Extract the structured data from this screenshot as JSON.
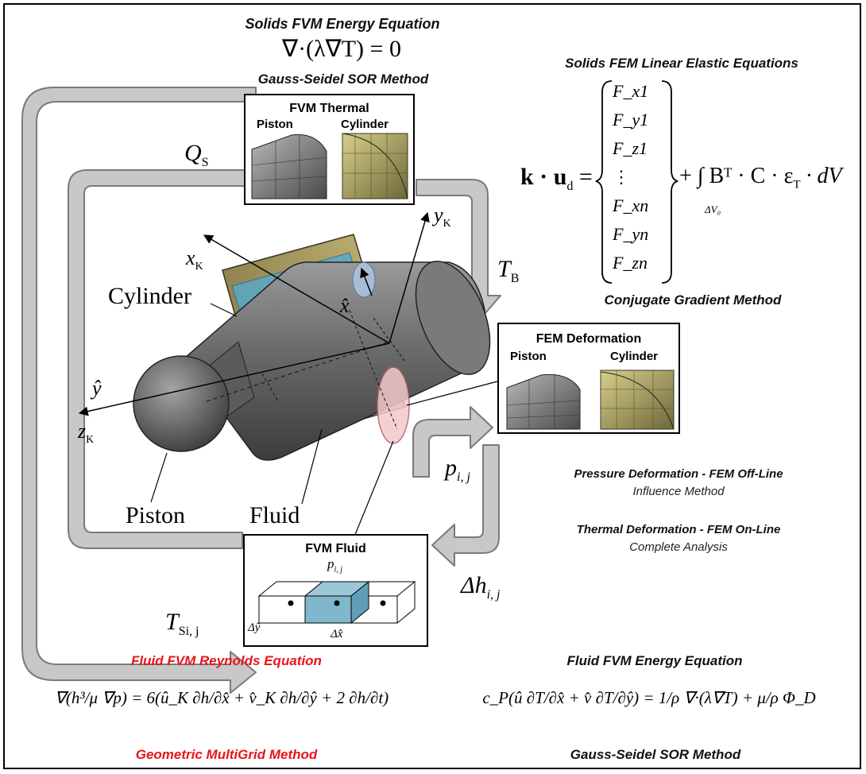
{
  "solids_fvm": {
    "title": "Solids FVM Energy Equation",
    "equation": "∇·(λ∇T) = 0",
    "method": "Gauss-Seidel SOR Method"
  },
  "solids_fem": {
    "title": "Solids FEM Linear Elastic Equations",
    "lhs": "k · u",
    "lhs_sub": "d",
    "force_vector": [
      "F_x1",
      "F_y1",
      "F_z1",
      "⋮",
      "F_xn",
      "F_yn",
      "F_zn"
    ],
    "rhs": "+ ∫ Bᵀ · C · ε",
    "rhs_sub": "T",
    "rhs_tail": "· dV",
    "integral_domain": "ΔV₀",
    "method": "Conjugate Gradient Method"
  },
  "fvm_thermal_box": {
    "title": "FVM Thermal",
    "left": "Piston",
    "right": "Cylinder"
  },
  "fem_deformation_box": {
    "title": "FEM Deformation",
    "left": "Piston",
    "right": "Cylinder"
  },
  "fvm_fluid_box": {
    "title": "FVM Fluid",
    "p_label": "p",
    "p_sub": "i, j",
    "dx": "Δx̂",
    "dy": "Δŷ"
  },
  "arrow_labels": {
    "qs": "Q",
    "qs_sub": "S",
    "tb": "T",
    "tb_sub": "B",
    "pij": "p",
    "pij_sub": "i, j",
    "dh": "Δh",
    "dh_sub": "i, j",
    "tsij": "T",
    "tsij_sub": "Si, j"
  },
  "model_labels": {
    "cylinder": "Cylinder",
    "piston": "Piston",
    "fluid": "Fluid",
    "xk": "x",
    "xk_sub": "K",
    "yk": "y",
    "yk_sub": "K",
    "zk": "z",
    "zk_sub": "K",
    "xhat": "x̂",
    "yhat": "ŷ"
  },
  "deformation_notes": {
    "pressure_title": "Pressure Deformation - FEM Off-Line",
    "pressure_sub": "Influence Method",
    "thermal_title": "Thermal Deformation - FEM On-Line",
    "thermal_sub": "Complete Analysis"
  },
  "reynolds": {
    "title": "Fluid FVM Reynolds Equation",
    "equation": "∇(h³/μ ∇p) = 6(û_K ∂h/∂x̂ + v̂_K ∂h/∂ŷ + 2 ∂h/∂t)",
    "method": "Geometric MultiGrid Method",
    "color": "#e8141a"
  },
  "fluid_energy": {
    "title": "Fluid FVM Energy Equation",
    "equation": "c_P(û ∂T/∂x̂ + v̂ ∂T/∂ŷ) = 1/ρ ∇·(λ∇T) + μ/ρ Φ_D",
    "method": "Gauss-Seidel SOR Method"
  },
  "colors": {
    "arrow_fill": "#c8c8c8",
    "arrow_stroke": "#7a7a7a",
    "piston": "#6c6c6c",
    "cylinder_shell": "#b7a96a",
    "fluid_film": "#5aa9c9",
    "fluid_cell": "#7fb8cc"
  }
}
